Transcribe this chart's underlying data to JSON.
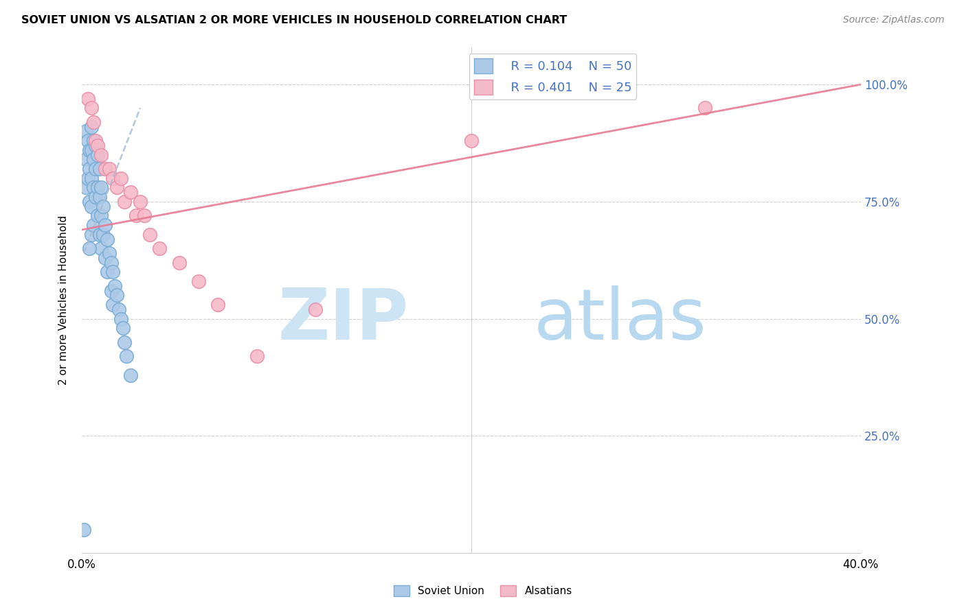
{
  "title": "SOVIET UNION VS ALSATIAN 2 OR MORE VEHICLES IN HOUSEHOLD CORRELATION CHART",
  "source": "Source: ZipAtlas.com",
  "ylabel": "2 or more Vehicles in Household",
  "ytick_labels": [
    "100.0%",
    "75.0%",
    "50.0%",
    "25.0%"
  ],
  "ytick_positions": [
    1.0,
    0.75,
    0.5,
    0.25
  ],
  "xlim": [
    0.0,
    0.4
  ],
  "ylim": [
    0.0,
    1.08
  ],
  "legend_r1": "R = 0.104",
  "legend_n1": "N = 50",
  "legend_r2": "R = 0.401",
  "legend_n2": "N = 25",
  "blue_color": "#adc9e8",
  "pink_color": "#f5baca",
  "blue_edge_color": "#7aadd4",
  "pink_edge_color": "#e890a8",
  "blue_line_color": "#aabdd4",
  "pink_line_color": "#e87a95",
  "watermark_zip_color": "#cde4f5",
  "watermark_atlas_color": "#b8d8f0",
  "soviet_x": [
    0.001,
    0.002,
    0.002,
    0.002,
    0.003,
    0.003,
    0.004,
    0.004,
    0.004,
    0.005,
    0.005,
    0.005,
    0.005,
    0.005,
    0.006,
    0.006,
    0.006,
    0.006,
    0.007,
    0.007,
    0.007,
    0.008,
    0.008,
    0.008,
    0.009,
    0.009,
    0.009,
    0.01,
    0.01,
    0.01,
    0.011,
    0.011,
    0.012,
    0.012,
    0.013,
    0.013,
    0.014,
    0.015,
    0.015,
    0.016,
    0.016,
    0.017,
    0.018,
    0.019,
    0.02,
    0.021,
    0.022,
    0.023,
    0.025,
    0.004
  ],
  "soviet_y": [
    0.05,
    0.9,
    0.84,
    0.78,
    0.88,
    0.8,
    0.86,
    0.82,
    0.75,
    0.91,
    0.86,
    0.8,
    0.74,
    0.68,
    0.88,
    0.84,
    0.78,
    0.7,
    0.87,
    0.82,
    0.76,
    0.85,
    0.78,
    0.72,
    0.82,
    0.76,
    0.68,
    0.78,
    0.72,
    0.65,
    0.74,
    0.68,
    0.7,
    0.63,
    0.67,
    0.6,
    0.64,
    0.62,
    0.56,
    0.6,
    0.53,
    0.57,
    0.55,
    0.52,
    0.5,
    0.48,
    0.45,
    0.42,
    0.38,
    0.65
  ],
  "alsatian_x": [
    0.003,
    0.005,
    0.006,
    0.007,
    0.008,
    0.01,
    0.012,
    0.014,
    0.016,
    0.018,
    0.02,
    0.022,
    0.025,
    0.028,
    0.03,
    0.032,
    0.035,
    0.04,
    0.05,
    0.06,
    0.07,
    0.09,
    0.12,
    0.2,
    0.32
  ],
  "alsatian_y": [
    0.97,
    0.95,
    0.92,
    0.88,
    0.87,
    0.85,
    0.82,
    0.82,
    0.8,
    0.78,
    0.8,
    0.75,
    0.77,
    0.72,
    0.75,
    0.72,
    0.68,
    0.65,
    0.62,
    0.58,
    0.53,
    0.42,
    0.52,
    0.88,
    0.95
  ],
  "blue_trendline_x": [
    0.001,
    0.03
  ],
  "blue_trendline_y": [
    0.64,
    0.95
  ],
  "pink_trendline_x": [
    0.0,
    0.4
  ],
  "pink_trendline_y": [
    0.69,
    1.0
  ]
}
